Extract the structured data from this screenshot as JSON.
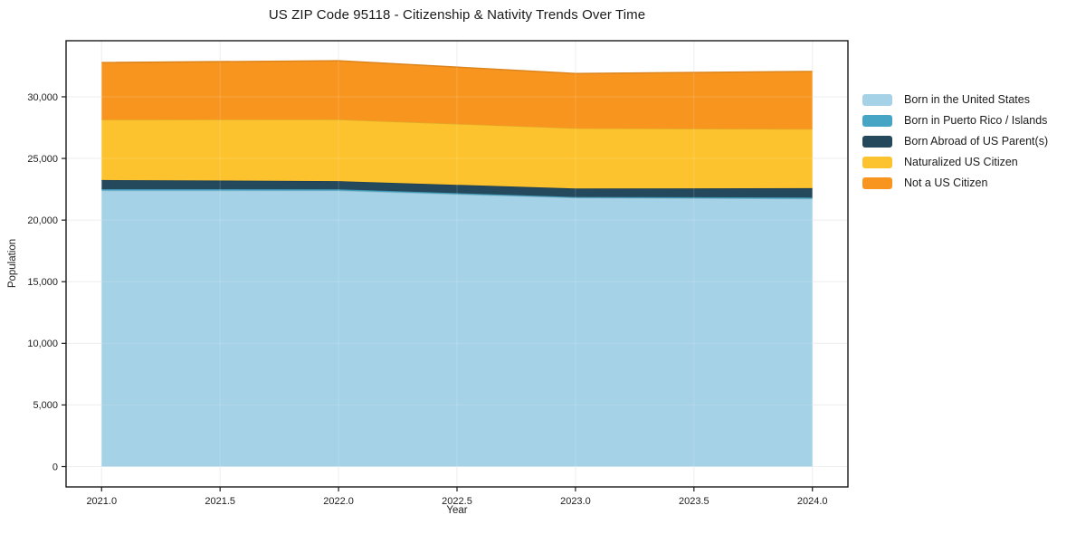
{
  "chart_data": {
    "type": "area",
    "stacked": true,
    "title": "US ZIP Code 95118 - Citizenship & Nativity Trends Over Time",
    "xlabel": "Year",
    "ylabel": "Population",
    "x": [
      2021,
      2022,
      2023,
      2024
    ],
    "series": [
      {
        "name": "Born in the United States",
        "color": "#a5d2e6",
        "values": [
          22400,
          22390,
          21800,
          21730
        ]
      },
      {
        "name": "Born in Puerto Rico / Islands",
        "color": "#46a5c5",
        "values": [
          110,
          110,
          80,
          100
        ]
      },
      {
        "name": "Born Abroad of US Parent(s)",
        "color": "#24485c",
        "values": [
          740,
          660,
          680,
          760
        ]
      },
      {
        "name": "Naturalized US Citizen",
        "color": "#fdc32e",
        "values": [
          4900,
          5000,
          4890,
          4790
        ]
      },
      {
        "name": "Not a US Citizen",
        "color": "#f8951f",
        "values": [
          4630,
          4770,
          4440,
          4680
        ]
      }
    ],
    "xlim": [
      2020.85,
      2024.15
    ],
    "ylim": [
      -1650,
      34550
    ],
    "xticks": [
      2021.0,
      2021.5,
      2022.0,
      2022.5,
      2023.0,
      2023.5,
      2024.0
    ],
    "xtick_labels": [
      "2021.0",
      "2021.5",
      "2022.0",
      "2022.5",
      "2023.0",
      "2023.5",
      "2024.0"
    ],
    "yticks": [
      0,
      5000,
      10000,
      15000,
      20000,
      25000,
      30000
    ],
    "ytick_labels": [
      "0",
      "5,000",
      "10,000",
      "15,000",
      "20,000",
      "25,000",
      "30,000"
    ],
    "grid": true,
    "legend_position": "right-outside"
  },
  "colors": {
    "grid": "#ebebeb",
    "grid_over_area": "rgba(255,255,255,0.16)",
    "spine": "#1a1a1a",
    "tick_text": "#1d1d1d",
    "background": "#ffffff"
  }
}
